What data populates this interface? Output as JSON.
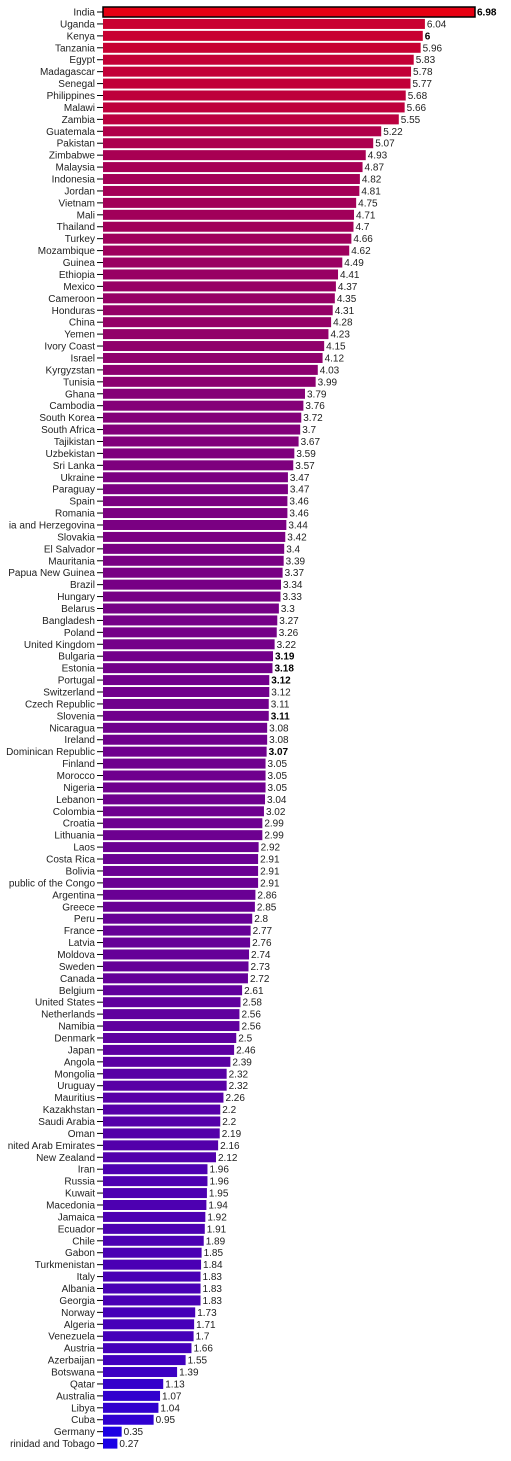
{
  "chart_data": {
    "type": "bar",
    "orientation": "horizontal",
    "title": "",
    "xlabel": "",
    "ylabel": "",
    "xlim": [
      0,
      6.98
    ],
    "grid": false,
    "legend": "none",
    "color_high": "#e60012",
    "color_low": "#1a00e6",
    "highlight_outline_color": "#000000",
    "bold_labels": [
      "India",
      "Kenya",
      "Bulgaria",
      "Estonia",
      "Portugal",
      "Slovenia",
      "Dominican Republic"
    ],
    "categories": [
      "India",
      "Uganda",
      "Kenya",
      "Tanzania",
      "Egypt",
      "Madagascar",
      "Senegal",
      "Philippines",
      "Malawi",
      "Zambia",
      "Guatemala",
      "Pakistan",
      "Zimbabwe",
      "Malaysia",
      "Indonesia",
      "Jordan",
      "Vietnam",
      "Mali",
      "Thailand",
      "Turkey",
      "Mozambique",
      "Guinea",
      "Ethiopia",
      "Mexico",
      "Cameroon",
      "Honduras",
      "China",
      "Yemen",
      "Ivory Coast",
      "Israel",
      "Kyrgyzstan",
      "Tunisia",
      "Ghana",
      "Cambodia",
      "South Korea",
      "South Africa",
      "Tajikistan",
      "Uzbekistan",
      "Sri Lanka",
      "Ukraine",
      "Paraguay",
      "Spain",
      "Romania",
      "ia and Herzegovina",
      "Slovakia",
      "El Salvador",
      "Mauritania",
      "Papua New Guinea",
      "Brazil",
      "Hungary",
      "Belarus",
      "Bangladesh",
      "Poland",
      "United Kingdom",
      "Bulgaria",
      "Estonia",
      "Portugal",
      "Switzerland",
      "Czech Republic",
      "Slovenia",
      "Nicaragua",
      "Ireland",
      "Dominican Republic",
      "Finland",
      "Morocco",
      "Nigeria",
      "Lebanon",
      "Colombia",
      "Croatia",
      "Lithuania",
      "Laos",
      "Costa Rica",
      "Bolivia",
      "public of the Congo",
      "Argentina",
      "Greece",
      "Peru",
      "France",
      "Latvia",
      "Moldova",
      "Sweden",
      "Canada",
      "Belgium",
      "United States",
      "Netherlands",
      "Namibia",
      "Denmark",
      "Japan",
      "Angola",
      "Mongolia",
      "Uruguay",
      "Mauritius",
      "Kazakhstan",
      "Saudi Arabia",
      "Oman",
      "nited Arab Emirates",
      "New Zealand",
      "Iran",
      "Russia",
      "Kuwait",
      "Macedonia",
      "Jamaica",
      "Ecuador",
      "Chile",
      "Gabon",
      "Turkmenistan",
      "Italy",
      "Albania",
      "Georgia",
      "Norway",
      "Algeria",
      "Venezuela",
      "Austria",
      "Azerbaijan",
      "Botswana",
      "Qatar",
      "Australia",
      "Libya",
      "Cuba",
      "Germany",
      "rinidad and Tobago"
    ],
    "values": [
      6.98,
      6.04,
      6,
      5.96,
      5.83,
      5.78,
      5.77,
      5.68,
      5.66,
      5.55,
      5.22,
      5.07,
      4.93,
      4.87,
      4.82,
      4.81,
      4.75,
      4.71,
      4.7,
      4.66,
      4.62,
      4.49,
      4.41,
      4.37,
      4.35,
      4.31,
      4.28,
      4.23,
      4.15,
      4.12,
      4.03,
      3.99,
      3.79,
      3.76,
      3.72,
      3.7,
      3.67,
      3.59,
      3.57,
      3.47,
      3.47,
      3.46,
      3.46,
      3.44,
      3.42,
      3.4,
      3.39,
      3.37,
      3.34,
      3.33,
      3.3,
      3.27,
      3.26,
      3.22,
      3.19,
      3.18,
      3.12,
      3.12,
      3.11,
      3.11,
      3.08,
      3.08,
      3.07,
      3.05,
      3.05,
      3.05,
      3.04,
      3.02,
      2.99,
      2.99,
      2.92,
      2.91,
      2.91,
      2.91,
      2.86,
      2.85,
      2.8,
      2.77,
      2.76,
      2.74,
      2.73,
      2.72,
      2.61,
      2.58,
      2.56,
      2.56,
      2.5,
      2.46,
      2.39,
      2.32,
      2.32,
      2.26,
      2.2,
      2.2,
      2.19,
      2.16,
      2.12,
      1.96,
      1.96,
      1.95,
      1.94,
      1.92,
      1.91,
      1.89,
      1.85,
      1.84,
      1.83,
      1.83,
      1.83,
      1.73,
      1.71,
      1.7,
      1.66,
      1.55,
      1.39,
      1.13,
      1.07,
      1.04,
      0.95,
      0.35,
      0.27
    ],
    "value_labels": [
      "6.98",
      "6.04",
      "6",
      "5.96",
      "5.83",
      "5.78",
      "5.77",
      "5.68",
      "5.66",
      "5.55",
      "5.22",
      "5.07",
      "4.93",
      "4.87",
      "4.82",
      "4.81",
      "4.75",
      "4.71",
      "4.7",
      "4.66",
      "4.62",
      "4.49",
      "4.41",
      "4.37",
      "4.35",
      "4.31",
      "4.28",
      "4.23",
      "4.15",
      "4.12",
      "4.03",
      "3.99",
      "3.79",
      "3.76",
      "3.72",
      "3.7",
      "3.67",
      "3.59",
      "3.57",
      "3.47",
      "3.47",
      "3.46",
      "3.46",
      "3.44",
      "3.42",
      "3.4",
      "3.39",
      "3.37",
      "3.34",
      "3.33",
      "3.3",
      "3.27",
      "3.26",
      "3.22",
      "3.19",
      "3.18",
      "3.12",
      "3.12",
      "3.11",
      "3.11",
      "3.08",
      "3.08",
      "3.07",
      "3.05",
      "3.05",
      "3.05",
      "3.04",
      "3.02",
      "2.99",
      "2.99",
      "2.92",
      "2.91",
      "2.91",
      "2.91",
      "2.86",
      "2.85",
      "2.8",
      "2.77",
      "2.76",
      "2.74",
      "2.73",
      "2.72",
      "2.61",
      "2.58",
      "2.56",
      "2.56",
      "2.5",
      "2.46",
      "2.39",
      "2.32",
      "2.32",
      "2.26",
      "2.2",
      "2.2",
      "2.19",
      "2.16",
      "2.12",
      "1.96",
      "1.96",
      "1.95",
      "1.94",
      "1.92",
      "1.91",
      "1.89",
      "1.85",
      "1.84",
      "1.83",
      "1.83",
      "1.83",
      "1.73",
      "1.71",
      "1.7",
      "1.66",
      "1.55",
      "1.39",
      "1.13",
      "1.07",
      "1.04",
      "0.95",
      "0.35",
      "0.27"
    ]
  }
}
